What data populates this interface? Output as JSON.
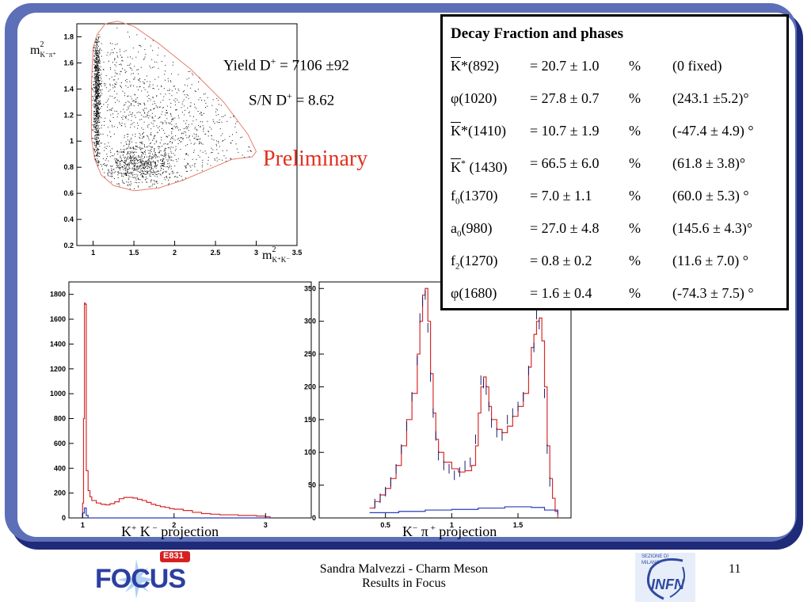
{
  "colors": {
    "frame": "#5c6fb8",
    "fit": "#d62b2b",
    "background_fit": "#2a3fb8",
    "data_points": "#1a1f6e",
    "preliminary": "#e0301e",
    "ellipse": "#e8806f"
  },
  "annotations": {
    "yield_text": "Yield D",
    "yield_sup": "+",
    "yield_value": " = 7106 ±92",
    "sn_text": "S/N D",
    "sn_sup": "+",
    "sn_value": " = 8.62",
    "preliminary": "Preliminary"
  },
  "table": {
    "title": "Decay Fraction and phases",
    "rows": [
      {
        "name": "K",
        "mark": "*",
        "mass": "(892)",
        "fraction": "= 20.7 ± 1.0",
        "unit": "%",
        "phase": "(0 fixed)",
        "bar": true
      },
      {
        "name": "φ",
        "mark": "",
        "mass": "(1020)",
        "fraction": "= 27.8 ± 0.7",
        "unit": "%",
        "phase": "(243.1 ±5.2)°",
        "bar": false
      },
      {
        "name": "K",
        "mark": "*",
        "mass": "(1410)",
        "fraction": "= 10.7 ± 1.9",
        "unit": "%",
        "phase": "(-47.4 ± 4.9) °",
        "bar": true
      },
      {
        "name": "K",
        "mark": "*",
        "mass": " (1430)",
        "fraction": "= 66.5 ± 6.0",
        "unit": "%",
        "phase": "(61.8 ± 3.8)°",
        "bar": true
      },
      {
        "name": "f",
        "sub": "0",
        "mass": "(1370)",
        "fraction": "=   7.0 ± 1.1",
        "unit": "%",
        "phase": "(60.0 ± 5.3) °",
        "bar": false
      },
      {
        "name": "a",
        "sub": "0",
        "mass": "(980)",
        "fraction": "= 27.0 ± 4.8",
        "unit": "%",
        "phase": "(145.6 ± 4.3)°",
        "bar": false
      },
      {
        "name": "f",
        "sub": "2",
        "mass": "(1270)",
        "fraction": "=   0.8 ± 0.2",
        "unit": "%",
        "phase": "(11.6 ± 7.0) °",
        "bar": false
      },
      {
        "name": "φ",
        "mark": "",
        "mass": "(1680)",
        "fraction": "=  1.6 ± 0.4",
        "unit": "%",
        "phase": "(-74.3 ± 7.5) °",
        "bar": false
      }
    ]
  },
  "projection_labels": {
    "kk": {
      "a": "K",
      "a_sup": "+",
      "b": " K",
      "b_sup": " −",
      "c": " projection"
    },
    "kpi": {
      "a": "K",
      "a_sup": "−",
      "b": " π",
      "b_sup": " +",
      "c": " projection"
    }
  },
  "dalitz_axis_labels": {
    "y_base": "m",
    "y_sup": "2",
    "y_sub": "K⁻π⁺",
    "x_base": "m",
    "x_sup": "2",
    "x_sub": "K⁺K⁻"
  },
  "footer": {
    "author_line1": "Sandra Malvezzi - Charm Meson",
    "author_line2": "Results  in Focus",
    "page": "11",
    "logo_focus": "FOCUS",
    "logo_e831": "E831",
    "logo_infn": "INFN",
    "logo_sezione": "SEZIONE DI",
    "logo_milano": "MILANO"
  },
  "chart_data": [
    {
      "type": "scatter",
      "title": "",
      "xlabel": "m²(K⁺K⁻)",
      "ylabel": "m²(K⁻π⁺)",
      "xlim": [
        0.8,
        3.5
      ],
      "ylim": [
        0.2,
        1.9
      ],
      "xticks": [
        "1",
        "1.5",
        "2",
        "2.5",
        "3",
        "3.5"
      ],
      "yticks": [
        "0.2",
        "0.4",
        "0.6",
        "0.8",
        "1",
        "1.2",
        "1.4",
        "1.6",
        "1.8"
      ],
      "boundary": [
        [
          0.98,
          1.02
        ],
        [
          0.98,
          1.45
        ],
        [
          1.0,
          1.72
        ],
        [
          1.05,
          1.82
        ],
        [
          1.15,
          1.9
        ],
        [
          1.3,
          1.92
        ],
        [
          1.5,
          1.88
        ],
        [
          1.8,
          1.75
        ],
        [
          2.2,
          1.55
        ],
        [
          2.6,
          1.3
        ],
        [
          2.9,
          1.05
        ],
        [
          3.0,
          0.92
        ],
        [
          2.95,
          0.88
        ],
        [
          2.7,
          0.86
        ],
        [
          2.4,
          0.78
        ],
        [
          2.1,
          0.7
        ],
        [
          1.8,
          0.64
        ],
        [
          1.5,
          0.62
        ],
        [
          1.25,
          0.66
        ],
        [
          1.1,
          0.74
        ],
        [
          1.02,
          0.86
        ],
        [
          0.98,
          1.02
        ]
      ],
      "clusters": [
        {
          "x": 1.04,
          "y": 1.38,
          "sx": 0.02,
          "sy": 0.32,
          "n": 900
        },
        {
          "x": 1.55,
          "y": 0.82,
          "sx": 0.22,
          "sy": 0.07,
          "n": 650
        },
        {
          "x": 2.0,
          "y": 1.05,
          "sx": 0.55,
          "sy": 0.25,
          "n": 900
        },
        {
          "x": 1.35,
          "y": 1.45,
          "sx": 0.35,
          "sy": 0.2,
          "n": 350
        }
      ]
    },
    {
      "type": "bar",
      "title": "",
      "xlabel": "K⁺ K⁻ projection",
      "xlim": [
        0.85,
        3.5
      ],
      "ylim": [
        0,
        1900
      ],
      "xticks": [
        "1",
        "2",
        "3"
      ],
      "yticks": [
        "0",
        "200",
        "400",
        "600",
        "800",
        "1000",
        "1200",
        "1400",
        "1600",
        "1800"
      ],
      "series": [
        {
          "name": "",
          "x": [
            0.98,
            1.0,
            1.01,
            1.02,
            1.03,
            1.04,
            1.06,
            1.08,
            1.1,
            1.15,
            1.2,
            1.25,
            1.3,
            1.35,
            1.4,
            1.45,
            1.5,
            1.55,
            1.6,
            1.65,
            1.7,
            1.75,
            1.8,
            1.85,
            1.9,
            1.95,
            2.0,
            2.1,
            2.2,
            2.3,
            2.4,
            2.5,
            2.6,
            2.7,
            2.8,
            2.9,
            3.0,
            3.05
          ],
          "values": [
            0,
            120,
            800,
            1730,
            1720,
            380,
            220,
            170,
            140,
            120,
            110,
            105,
            115,
            130,
            155,
            165,
            165,
            160,
            150,
            140,
            125,
            110,
            100,
            90,
            85,
            75,
            70,
            60,
            45,
            35,
            30,
            25,
            25,
            20,
            20,
            15,
            10,
            0
          ]
        },
        {
          "name": "",
          "x": [
            0.98,
            1.0,
            1.02,
            1.04,
            1.06,
            3.05
          ],
          "values": [
            0,
            40,
            80,
            20,
            0,
            0
          ]
        }
      ]
    },
    {
      "type": "bar",
      "title": "",
      "xlabel": "K⁻ π⁺ projection",
      "xlim": [
        0.0,
        1.9
      ],
      "ylim": [
        0,
        360
      ],
      "xticks": [
        "0.5",
        "1",
        "1.5"
      ],
      "yticks": [
        "0",
        "50",
        "100",
        "150",
        "200",
        "250",
        "300",
        "350"
      ],
      "series": [
        {
          "name": "",
          "x": [
            0.38,
            0.42,
            0.46,
            0.5,
            0.54,
            0.58,
            0.62,
            0.66,
            0.7,
            0.74,
            0.76,
            0.78,
            0.8,
            0.82,
            0.84,
            0.86,
            0.88,
            0.9,
            0.94,
            1.0,
            1.05,
            1.1,
            1.15,
            1.18,
            1.2,
            1.22,
            1.24,
            1.26,
            1.28,
            1.3,
            1.34,
            1.38,
            1.42,
            1.46,
            1.5,
            1.54,
            1.58,
            1.6,
            1.62,
            1.64,
            1.66,
            1.68,
            1.7,
            1.72,
            1.74,
            1.76,
            1.78,
            1.8
          ],
          "values": [
            15,
            25,
            35,
            45,
            60,
            80,
            110,
            150,
            190,
            250,
            300,
            340,
            350,
            300,
            220,
            160,
            120,
            100,
            85,
            75,
            70,
            72,
            80,
            110,
            160,
            200,
            215,
            200,
            170,
            150,
            135,
            130,
            140,
            155,
            170,
            190,
            230,
            260,
            280,
            300,
            305,
            270,
            200,
            110,
            60,
            30,
            10,
            0
          ]
        },
        {
          "name": "",
          "x": [
            0.38,
            0.6,
            0.8,
            1.0,
            1.2,
            1.4,
            1.6,
            1.7,
            1.8
          ],
          "values": [
            8,
            10,
            12,
            13,
            15,
            17,
            16,
            12,
            5
          ]
        }
      ],
      "points": [
        [
          0.42,
          22
        ],
        [
          0.46,
          30
        ],
        [
          0.5,
          40
        ],
        [
          0.54,
          55
        ],
        [
          0.58,
          75
        ],
        [
          0.62,
          105
        ],
        [
          0.66,
          140
        ],
        [
          0.7,
          185
        ],
        [
          0.74,
          240
        ],
        [
          0.76,
          305
        ],
        [
          0.78,
          330
        ],
        [
          0.8,
          340
        ],
        [
          0.82,
          290
        ],
        [
          0.84,
          215
        ],
        [
          0.86,
          160
        ],
        [
          0.88,
          125
        ],
        [
          0.9,
          95
        ],
        [
          0.94,
          80
        ],
        [
          0.98,
          75
        ],
        [
          1.02,
          65
        ],
        [
          1.06,
          70
        ],
        [
          1.1,
          80
        ],
        [
          1.14,
          85
        ],
        [
          1.18,
          120
        ],
        [
          1.22,
          210
        ],
        [
          1.24,
          205
        ],
        [
          1.26,
          195
        ],
        [
          1.28,
          170
        ],
        [
          1.3,
          145
        ],
        [
          1.34,
          130
        ],
        [
          1.38,
          125
        ],
        [
          1.42,
          150
        ],
        [
          1.46,
          160
        ],
        [
          1.5,
          170
        ],
        [
          1.54,
          185
        ],
        [
          1.58,
          225
        ],
        [
          1.62,
          260
        ],
        [
          1.64,
          310
        ],
        [
          1.66,
          295
        ],
        [
          1.7,
          190
        ],
        [
          1.72,
          105
        ],
        [
          1.74,
          55
        ]
      ]
    }
  ]
}
